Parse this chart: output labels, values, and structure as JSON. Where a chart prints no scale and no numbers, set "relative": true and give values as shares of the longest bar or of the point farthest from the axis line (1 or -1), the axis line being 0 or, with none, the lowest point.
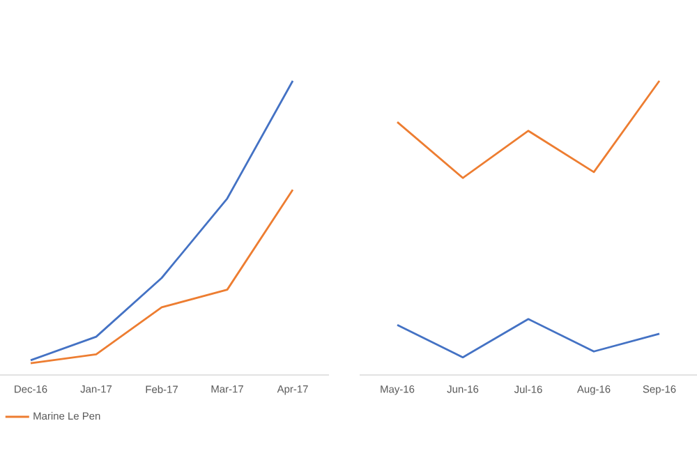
{
  "chart_data": [
    {
      "type": "line",
      "relative": true,
      "categories": [
        "Dec-16",
        "Jan-17",
        "Feb-17",
        "Mar-17",
        "Apr-17"
      ],
      "legend": "bottom",
      "grid": false,
      "series": [
        {
          "color": "#4472c4",
          "values": [
            0.05,
            0.13,
            0.33,
            0.6,
            1
          ]
        },
        {
          "name": "Marine Le Pen",
          "color": "#ed7d31",
          "values": [
            0.04,
            0.07,
            0.23,
            0.29,
            0.63
          ]
        }
      ]
    },
    {
      "type": "line",
      "relative": true,
      "categories": [
        "May-16",
        "Jun-16",
        "Jul-16",
        "Aug-16",
        "Sep-16"
      ],
      "grid": false,
      "series": [
        {
          "color": "#ed7d31",
          "values": [
            0.86,
            0.67,
            0.83,
            0.69,
            1
          ]
        },
        {
          "color": "#4472c4",
          "values": [
            0.17,
            0.06,
            0.19,
            0.08,
            0.14
          ]
        }
      ]
    }
  ]
}
